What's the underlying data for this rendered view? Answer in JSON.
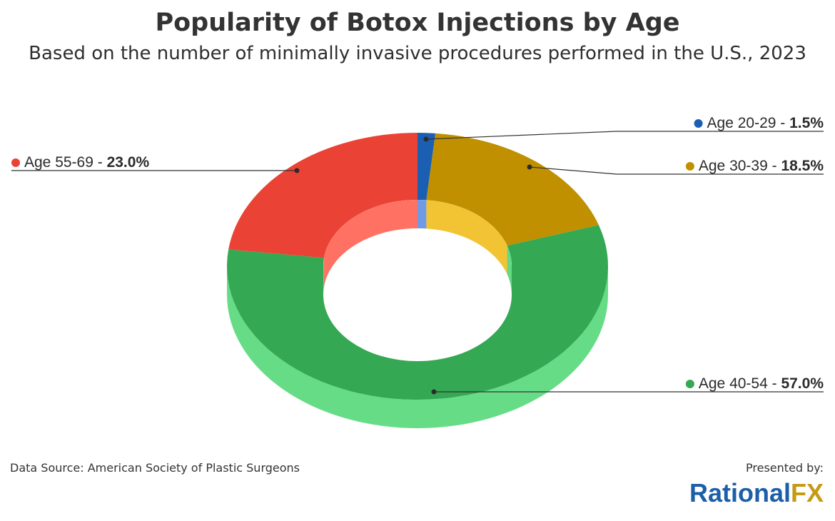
{
  "title": "Popularity of Botox Injections by Age",
  "subtitle": "Based on the number of minimally invasive procedures performed in the U.S., 2023",
  "source": "Data Source: American Society of Plastic Surgeons",
  "presented_by": "Presented by:",
  "brand": {
    "part1": "Rational",
    "part2": "FX"
  },
  "chart_data": {
    "type": "pie",
    "style": "3d-donut",
    "title": "Popularity of Botox Injections by Age",
    "subtitle": "Based on the number of minimally invasive procedures performed in the U.S., 2023",
    "slices": [
      {
        "label": "Age 20-29",
        "value": 1.5,
        "value_text": "1.5%",
        "color": "#1b5fb3",
        "inner_color": "#6f9ae6",
        "side_color": "#5a8ad8"
      },
      {
        "label": "Age 30-39",
        "value": 18.5,
        "value_text": "18.5%",
        "color": "#c09000",
        "inner_color": "#f2c434",
        "side_color": "#e0b420"
      },
      {
        "label": "Age 40-54",
        "value": 57.0,
        "value_text": "57.0%",
        "color": "#35a853",
        "inner_color": "#66d884",
        "side_color": "#66dc87"
      },
      {
        "label": "Age 55-69",
        "value": 23.0,
        "value_text": "23.0%",
        "color": "#ea4335",
        "inner_color": "#ff7163",
        "side_color": "#ff7163"
      }
    ],
    "legend_placement": "callout labels around chart"
  }
}
